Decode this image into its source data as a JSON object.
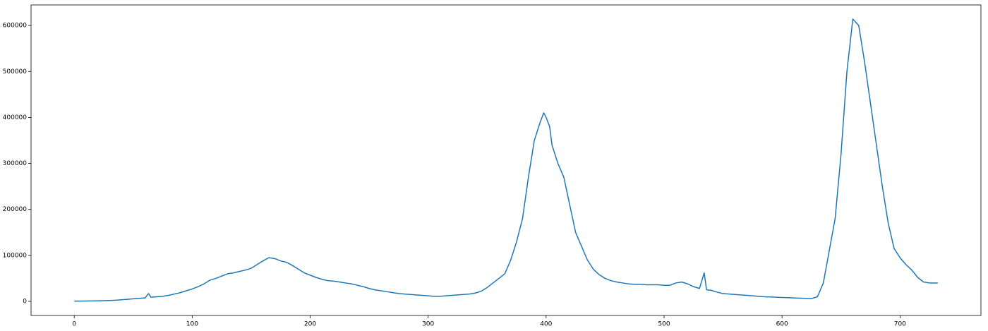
{
  "chart_data": {
    "type": "line",
    "x": [
      0,
      5,
      10,
      15,
      20,
      25,
      30,
      35,
      40,
      45,
      50,
      55,
      60,
      63,
      65,
      70,
      75,
      80,
      85,
      90,
      95,
      100,
      105,
      110,
      115,
      120,
      125,
      130,
      135,
      140,
      145,
      150,
      155,
      160,
      165,
      170,
      175,
      180,
      185,
      190,
      195,
      200,
      205,
      210,
      215,
      220,
      225,
      230,
      235,
      240,
      245,
      250,
      255,
      260,
      265,
      270,
      275,
      280,
      285,
      290,
      295,
      300,
      305,
      310,
      315,
      320,
      325,
      330,
      335,
      340,
      345,
      350,
      355,
      360,
      365,
      370,
      375,
      380,
      385,
      390,
      395,
      398,
      400,
      403,
      405,
      410,
      415,
      420,
      425,
      430,
      435,
      440,
      445,
      450,
      455,
      460,
      465,
      470,
      475,
      480,
      485,
      490,
      495,
      500,
      505,
      510,
      515,
      520,
      525,
      530,
      534,
      536,
      540,
      545,
      550,
      555,
      560,
      565,
      570,
      575,
      580,
      585,
      590,
      595,
      600,
      605,
      610,
      615,
      620,
      625,
      630,
      635,
      640,
      645,
      650,
      655,
      660,
      665,
      670,
      675,
      680,
      685,
      690,
      695,
      700,
      705,
      710,
      715,
      720,
      725,
      732
    ],
    "series": [
      {
        "color": "#1f77b4",
        "values": [
          500,
          600,
          800,
          1000,
          1200,
          1500,
          2000,
          2500,
          3500,
          4500,
          5500,
          6500,
          7500,
          17000,
          9000,
          10000,
          11000,
          13000,
          16000,
          19000,
          23000,
          27000,
          32000,
          38000,
          46000,
          50000,
          55000,
          60000,
          62000,
          65000,
          68000,
          72000,
          80000,
          88000,
          95000,
          93000,
          88000,
          85000,
          78000,
          70000,
          62000,
          57000,
          52000,
          48000,
          45000,
          44000,
          42000,
          40000,
          38000,
          35000,
          32000,
          28000,
          25000,
          23000,
          21000,
          19000,
          17000,
          16000,
          15000,
          14000,
          13000,
          12000,
          11000,
          11000,
          12000,
          13000,
          14000,
          15000,
          16000,
          18000,
          22000,
          30000,
          40000,
          50000,
          60000,
          90000,
          130000,
          180000,
          270000,
          350000,
          390000,
          410000,
          400000,
          380000,
          340000,
          300000,
          270000,
          210000,
          150000,
          120000,
          90000,
          70000,
          58000,
          50000,
          45000,
          42000,
          40000,
          38000,
          37000,
          37000,
          36000,
          36000,
          36000,
          35000,
          35000,
          40000,
          42000,
          38000,
          32000,
          28000,
          62000,
          25000,
          24000,
          20000,
          17000,
          16000,
          15000,
          14000,
          13000,
          12000,
          11000,
          10000,
          9500,
          9000,
          8500,
          8000,
          7500,
          7000,
          6500,
          6000,
          10000,
          40000,
          110000,
          180000,
          320000,
          500000,
          614000,
          600000,
          520000,
          430000,
          340000,
          250000,
          170000,
          115000,
          95000,
          80000,
          68000,
          52000,
          42000,
          40000,
          40000
        ]
      }
    ],
    "xlim": [
      -36.6,
      768.6
    ],
    "ylim": [
      -30700,
      644700
    ],
    "xticks": [
      0,
      100,
      200,
      300,
      400,
      500,
      600,
      700
    ],
    "yticks": [
      0,
      100000,
      200000,
      300000,
      400000,
      500000,
      600000
    ]
  }
}
